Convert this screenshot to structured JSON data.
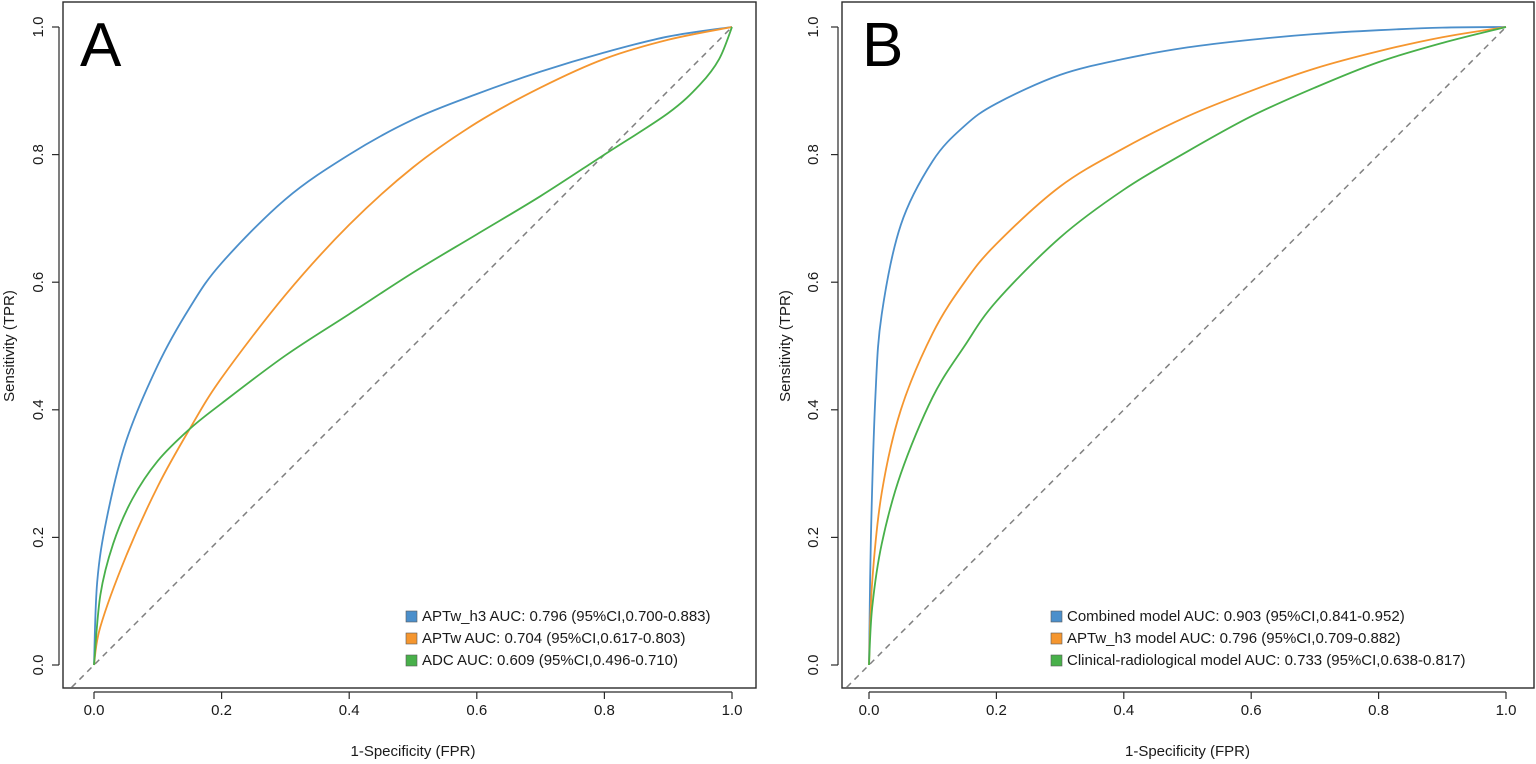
{
  "chart_data": [
    {
      "type": "line",
      "panel_label": "A",
      "xlabel": "1-Specificity (FPR)",
      "ylabel": "Sensitivity (TPR)",
      "xlim": [
        0,
        1
      ],
      "ylim": [
        0,
        1
      ],
      "xticks": [
        "0.0",
        "0.2",
        "0.4",
        "0.6",
        "0.8",
        "1.0"
      ],
      "yticks": [
        "0.0",
        "0.2",
        "0.4",
        "0.6",
        "0.8",
        "1.0"
      ],
      "reference_line": "diagonal",
      "legend_position": "bottom-right",
      "series": [
        {
          "name": "APTw_h3 AUC: 0.796 (95%CI,0.700-0.883)",
          "color": "#4b8fcb",
          "x": [
            0,
            0.005,
            0.02,
            0.05,
            0.1,
            0.15,
            0.2,
            0.3,
            0.4,
            0.5,
            0.6,
            0.7,
            0.8,
            0.9,
            1.0
          ],
          "y": [
            0,
            0.13,
            0.23,
            0.35,
            0.47,
            0.56,
            0.63,
            0.73,
            0.8,
            0.855,
            0.895,
            0.93,
            0.96,
            0.985,
            1.0
          ]
        },
        {
          "name": "APTw AUC: 0.704 (95%CI,0.617-0.803)",
          "color": "#f5962f",
          "x": [
            0,
            0.01,
            0.05,
            0.1,
            0.15,
            0.2,
            0.3,
            0.4,
            0.5,
            0.6,
            0.7,
            0.8,
            0.9,
            1.0
          ],
          "y": [
            0,
            0.06,
            0.17,
            0.28,
            0.37,
            0.45,
            0.58,
            0.69,
            0.78,
            0.85,
            0.905,
            0.95,
            0.98,
            1.0
          ]
        },
        {
          "name": "ADC AUC: 0.609 (95%CI,0.496-0.710)",
          "color": "#48b04a",
          "x": [
            0,
            0.01,
            0.03,
            0.06,
            0.1,
            0.15,
            0.2,
            0.3,
            0.4,
            0.5,
            0.6,
            0.7,
            0.8,
            0.9,
            0.95,
            0.98,
            1.0
          ],
          "y": [
            0,
            0.11,
            0.19,
            0.26,
            0.32,
            0.37,
            0.41,
            0.485,
            0.55,
            0.615,
            0.675,
            0.735,
            0.8,
            0.865,
            0.91,
            0.95,
            1.0
          ]
        }
      ]
    },
    {
      "type": "line",
      "panel_label": "B",
      "xlabel": "1-Specificity (FPR)",
      "ylabel": "Sensitivity (TPR)",
      "xlim": [
        0,
        1
      ],
      "ylim": [
        0,
        1
      ],
      "xticks": [
        "0.0",
        "0.2",
        "0.4",
        "0.6",
        "0.8",
        "1.0"
      ],
      "yticks": [
        "0.0",
        "0.2",
        "0.4",
        "0.6",
        "0.8",
        "1.0"
      ],
      "reference_line": "diagonal",
      "legend_position": "bottom-right",
      "series": [
        {
          "name": "Combined model AUC: 0.903 (95%CI,0.841-0.952)",
          "color": "#4b8fcb",
          "x": [
            0,
            0.003,
            0.01,
            0.02,
            0.05,
            0.1,
            0.15,
            0.2,
            0.3,
            0.4,
            0.5,
            0.6,
            0.7,
            0.8,
            0.9,
            1.0
          ],
          "y": [
            0,
            0.2,
            0.42,
            0.55,
            0.69,
            0.79,
            0.845,
            0.88,
            0.925,
            0.95,
            0.968,
            0.98,
            0.989,
            0.995,
            0.999,
            1.0
          ]
        },
        {
          "name": "APTw_h3 model AUC: 0.796 (95%CI,0.709-0.882)",
          "color": "#f5962f",
          "x": [
            0,
            0.005,
            0.02,
            0.05,
            0.1,
            0.15,
            0.2,
            0.3,
            0.4,
            0.5,
            0.6,
            0.7,
            0.8,
            0.9,
            1.0
          ],
          "y": [
            0,
            0.13,
            0.27,
            0.4,
            0.52,
            0.6,
            0.66,
            0.75,
            0.81,
            0.86,
            0.9,
            0.935,
            0.962,
            0.984,
            1.0
          ]
        },
        {
          "name": "Clinical-radiological model AUC: 0.733 (95%CI,0.638-0.817)",
          "color": "#48b04a",
          "x": [
            0,
            0.005,
            0.02,
            0.05,
            0.1,
            0.15,
            0.2,
            0.3,
            0.4,
            0.5,
            0.6,
            0.7,
            0.8,
            0.9,
            1.0
          ],
          "y": [
            0,
            0.09,
            0.19,
            0.3,
            0.42,
            0.5,
            0.57,
            0.67,
            0.745,
            0.805,
            0.86,
            0.905,
            0.945,
            0.975,
            1.0
          ]
        }
      ]
    }
  ]
}
